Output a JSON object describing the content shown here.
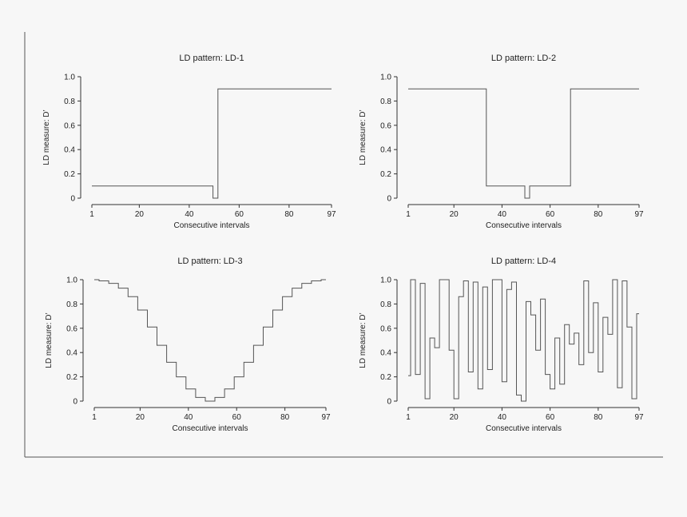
{
  "chart_data": [
    {
      "type": "line",
      "title": "LD pattern: LD-1",
      "xlabel": "Consecutive intervals",
      "ylabel": "LD measure: D’",
      "xticks": [
        1,
        20,
        40,
        60,
        80,
        97
      ],
      "yticks": [
        0,
        0.2,
        0.4,
        0.6,
        0.8,
        1.0
      ],
      "ytick_labels": [
        "0",
        "0.2",
        "0.4",
        "0.6",
        "0.8",
        "1.0"
      ],
      "xlim": [
        1,
        97
      ],
      "ylim": [
        0,
        1.0
      ],
      "segments": [
        {
          "from": 1,
          "to": 49,
          "value": 0.1
        },
        {
          "from": 50,
          "to": 51,
          "value": 0.0
        },
        {
          "from": 52,
          "to": 97,
          "value": 0.9
        }
      ]
    },
    {
      "type": "line",
      "title": "LD pattern: LD-2",
      "xlabel": "Consecutive intervals",
      "ylabel": "LD measure: D’",
      "xticks": [
        1,
        20,
        40,
        60,
        80,
        97
      ],
      "yticks": [
        0,
        0.2,
        0.4,
        0.6,
        0.8,
        1.0
      ],
      "ytick_labels": [
        "0",
        "0.2",
        "0.4",
        "0.6",
        "0.8",
        "1.0"
      ],
      "xlim": [
        1,
        97
      ],
      "ylim": [
        0,
        1.0
      ],
      "segments": [
        {
          "from": 1,
          "to": 33,
          "value": 0.9
        },
        {
          "from": 34,
          "to": 49,
          "value": 0.1
        },
        {
          "from": 50,
          "to": 51,
          "value": 0.0
        },
        {
          "from": 52,
          "to": 68,
          "value": 0.1
        },
        {
          "from": 69,
          "to": 97,
          "value": 0.9
        }
      ]
    },
    {
      "type": "line",
      "title": "LD pattern: LD-3",
      "xlabel": "Consecutive intervals",
      "ylabel": "LD measure: D’",
      "xticks": [
        1,
        20,
        40,
        60,
        80,
        97
      ],
      "yticks": [
        0,
        0.2,
        0.4,
        0.6,
        0.8,
        1.0
      ],
      "ytick_labels": [
        "0",
        "0.2",
        "0.4",
        "0.6",
        "0.8",
        "1.0"
      ],
      "xlim": [
        1,
        97
      ],
      "ylim": [
        0,
        1.0
      ],
      "curve": "bell-shaped trough: D’ = 1.0 at intervals 1 and 97, minimum 0.0 at interval 49",
      "x": [
        1,
        5,
        9,
        13,
        17,
        21,
        25,
        29,
        33,
        37,
        41,
        45,
        49,
        53,
        57,
        61,
        65,
        69,
        73,
        77,
        81,
        85,
        89,
        93,
        97
      ],
      "values": [
        1.0,
        0.99,
        0.97,
        0.93,
        0.86,
        0.75,
        0.61,
        0.46,
        0.32,
        0.2,
        0.1,
        0.03,
        0.0,
        0.03,
        0.1,
        0.2,
        0.32,
        0.46,
        0.61,
        0.75,
        0.86,
        0.93,
        0.97,
        0.99,
        1.0
      ]
    },
    {
      "type": "line",
      "title": "LD pattern: LD-4",
      "xlabel": "Consecutive intervals",
      "ylabel": "LD measure: D’",
      "xticks": [
        1,
        20,
        40,
        60,
        80,
        97
      ],
      "yticks": [
        0,
        0.2,
        0.4,
        0.6,
        0.8,
        1.0
      ],
      "ytick_labels": [
        "0",
        "0.2",
        "0.4",
        "0.6",
        "0.8",
        "1.0"
      ],
      "xlim": [
        1,
        97
      ],
      "ylim": [
        0,
        1.0
      ],
      "x": [
        1,
        3,
        5,
        7,
        9,
        11,
        13,
        15,
        17,
        19,
        21,
        23,
        25,
        27,
        29,
        31,
        33,
        35,
        37,
        39,
        41,
        43,
        45,
        47,
        49,
        51,
        53,
        55,
        57,
        59,
        61,
        63,
        65,
        67,
        69,
        71,
        73,
        75,
        77,
        79,
        81,
        83,
        85,
        87,
        89,
        91,
        93,
        95,
        97
      ],
      "values": [
        0.21,
        1.0,
        0.22,
        0.97,
        0.02,
        0.52,
        0.44,
        1.0,
        1.0,
        0.42,
        0.02,
        0.86,
        0.99,
        0.24,
        0.98,
        0.1,
        0.94,
        0.26,
        1.0,
        1.0,
        0.16,
        0.92,
        0.98,
        0.05,
        0.0,
        0.82,
        0.71,
        0.42,
        0.84,
        0.22,
        0.1,
        0.52,
        0.14,
        0.63,
        0.47,
        0.56,
        0.3,
        0.99,
        0.4,
        0.81,
        0.24,
        0.69,
        0.55,
        1.0,
        0.11,
        0.99,
        0.61,
        0.02,
        0.72
      ]
    }
  ]
}
